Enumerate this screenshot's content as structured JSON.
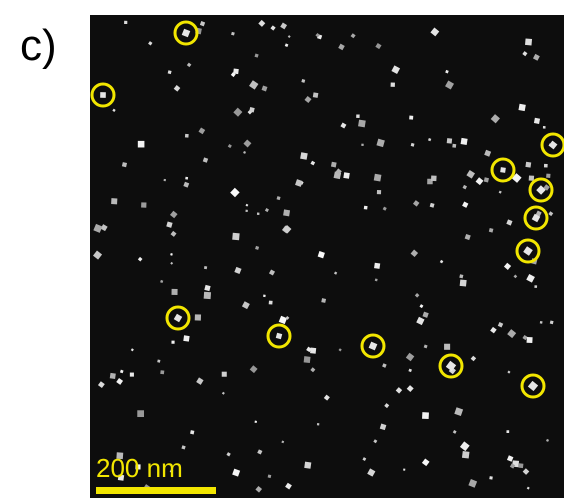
{
  "panel_label": "c)",
  "scale_bar": {
    "label": "200 nm"
  }
}
